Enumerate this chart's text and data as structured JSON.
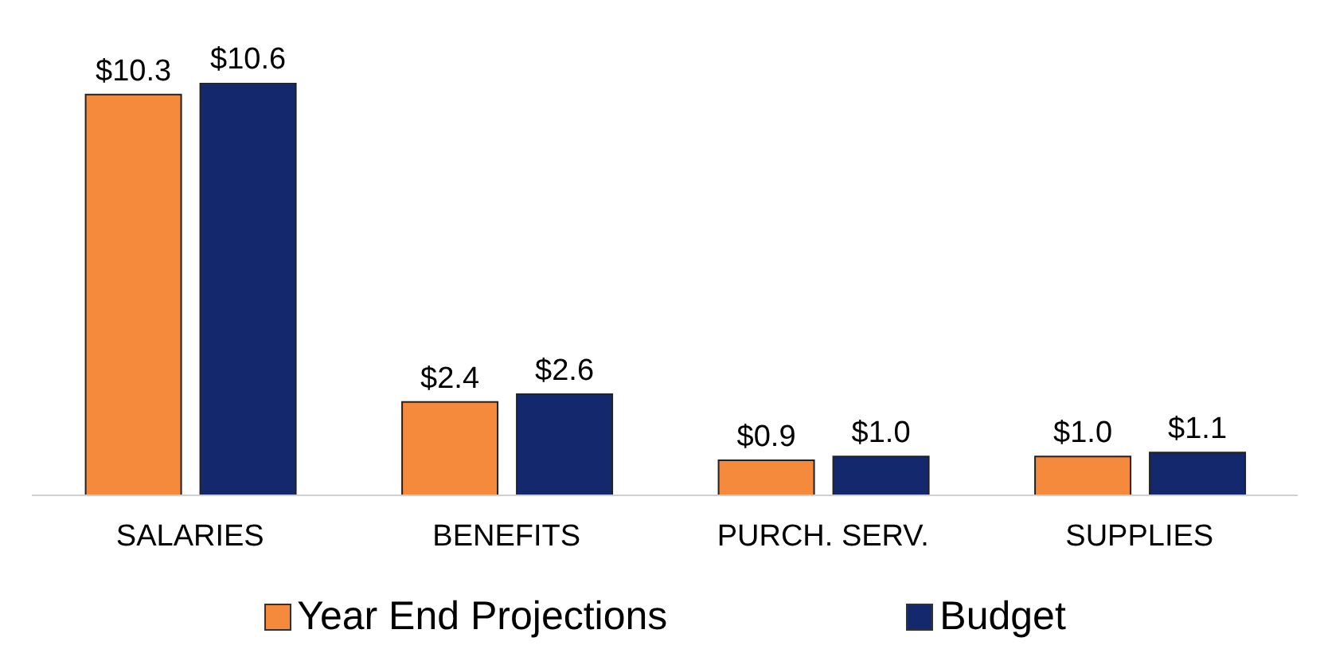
{
  "chart_data": {
    "type": "bar",
    "categories": [
      "SALARIES",
      "BENEFITS",
      "PURCH. SERV.",
      "SUPPLIES"
    ],
    "legend": "bottom",
    "series": [
      {
        "name": "Year End Projections",
        "color": "#f58a3c",
        "values": [
          10.3,
          2.4,
          0.9,
          1.0
        ],
        "value_labels": [
          "$10.3",
          "$2.4",
          "$0.9",
          "$1.0"
        ]
      },
      {
        "name": "Budget",
        "color": "#14286e",
        "values": [
          10.6,
          2.6,
          1.0,
          1.1
        ],
        "value_labels": [
          "$10.6",
          "$2.6",
          "$1.0",
          "$1.1"
        ]
      }
    ]
  }
}
